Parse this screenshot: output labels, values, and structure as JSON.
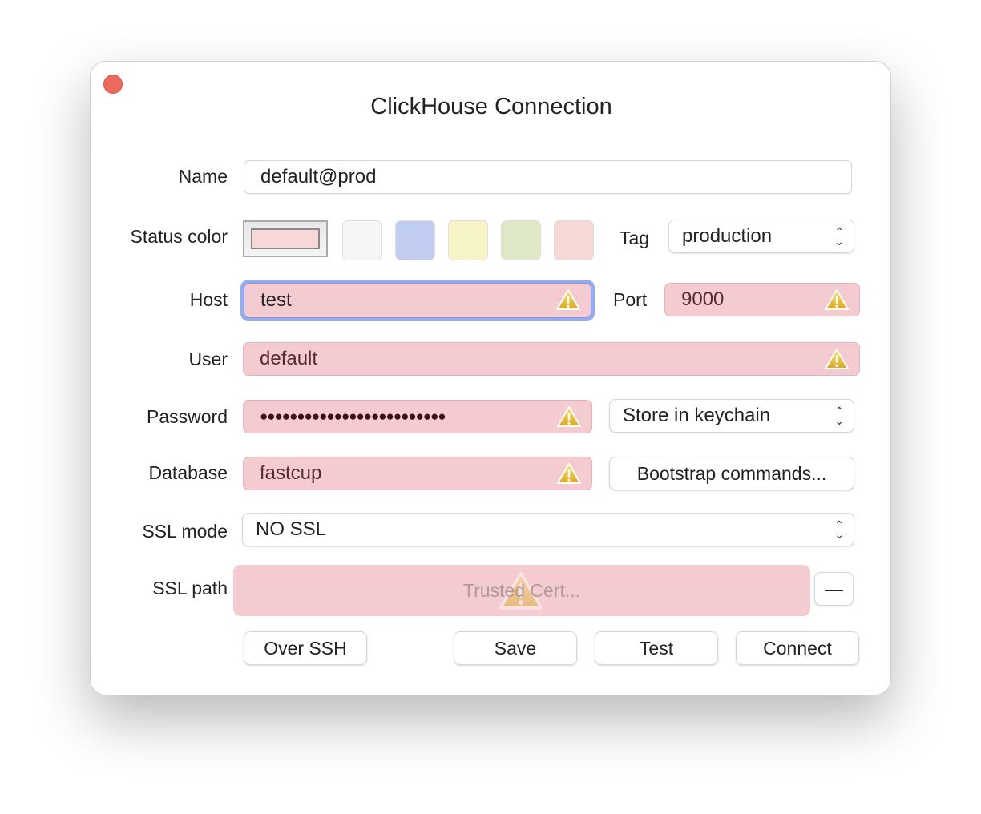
{
  "window": {
    "title": "ClickHouse Connection"
  },
  "form": {
    "name": {
      "label": "Name",
      "value": "default@prod"
    },
    "status_color": {
      "label": "Status color",
      "selected": "#f9d7d7",
      "swatches": [
        "#f6f6f6",
        "#c1cdf0",
        "#f7f5c6",
        "#dfe9c8",
        "#f6d8d6"
      ]
    },
    "tag": {
      "label": "Tag",
      "value": "production"
    },
    "host": {
      "label": "Host",
      "value": "test"
    },
    "port": {
      "label": "Port",
      "value": "9000"
    },
    "user": {
      "label": "User",
      "value": "default"
    },
    "password": {
      "label": "Password",
      "value": "●●●●●●●●●●●●●●●●●●●●●●●●●"
    },
    "password_storage": {
      "value": "Store in keychain"
    },
    "database": {
      "label": "Database",
      "value": "fastcup"
    },
    "bootstrap": {
      "label": "Bootstrap commands..."
    },
    "ssl_mode": {
      "label": "SSL mode",
      "value": "NO SSL"
    },
    "ssl_path": {
      "label": "SSL path",
      "placeholder": "Trusted Cert...",
      "remove": "—"
    }
  },
  "buttons": {
    "over_ssh": "Over SSH",
    "save": "Save",
    "test": "Test",
    "connect": "Connect"
  },
  "colors": {
    "error_field": "#f4cbd0",
    "focus_ring": "#8fa8ef",
    "close": "#ee6a5f"
  }
}
